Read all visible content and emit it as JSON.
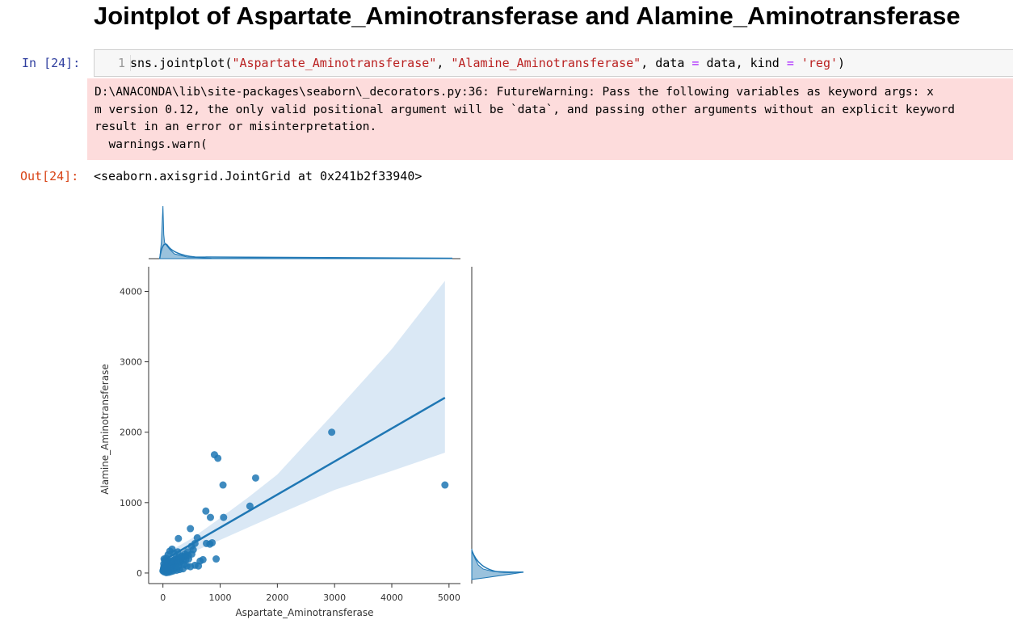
{
  "title": "Jointplot of Aspartate_Aminotransferase and Alamine_Aminotransferase",
  "input_cell": {
    "prompt": "In [24]:",
    "line_number": "1",
    "code_tokens": [
      {
        "text": "sns.jointplot(",
        "kind": "plain"
      },
      {
        "text": "\"Aspartate_Aminotransferase\"",
        "kind": "string"
      },
      {
        "text": ", ",
        "kind": "plain"
      },
      {
        "text": "\"Alamine_Aminotransferase\"",
        "kind": "string"
      },
      {
        "text": ", data ",
        "kind": "plain"
      },
      {
        "text": "=",
        "kind": "operator"
      },
      {
        "text": " data, kind ",
        "kind": "plain"
      },
      {
        "text": "=",
        "kind": "operator"
      },
      {
        "text": " ",
        "kind": "plain"
      },
      {
        "text": "'reg'",
        "kind": "string"
      },
      {
        "text": ")",
        "kind": "plain"
      }
    ]
  },
  "stderr": {
    "lines": [
      "D:\\ANACONDA\\lib\\site-packages\\seaborn\\_decorators.py:36: FutureWarning: Pass the following variables as keyword args: x",
      "m version 0.12, the only valid positional argument will be `data`, and passing other arguments without an explicit keyword",
      "result in an error or misinterpretation.",
      "  warnings.warn("
    ]
  },
  "output_cell": {
    "prompt": "Out[24]:",
    "text": "<seaborn.axisgrid.JointGrid at 0x241b2f33940>"
  },
  "colors": {
    "point": "#1f77b4",
    "ci_band": "#c6dbef",
    "error_bg": "#fddcdc",
    "in_prompt": "#303f9f",
    "out_prompt": "#d84315"
  },
  "chart_data": {
    "type": "scatter",
    "xlabel": "Aspartate_Aminotransferase",
    "ylabel": "Alamine_Aminotransferase",
    "xlim": [
      -250,
      5200
    ],
    "ylim": [
      -150,
      4350
    ],
    "xticks": [
      0,
      1000,
      2000,
      3000,
      4000,
      5000
    ],
    "yticks": [
      0,
      1000,
      2000,
      3000,
      4000
    ],
    "regression": {
      "x": [
        10,
        4929
      ],
      "y": [
        180,
        2490
      ]
    },
    "ci_band": {
      "x": [
        10,
        500,
        1000,
        1500,
        2000,
        3000,
        4000,
        4929
      ],
      "upper": [
        260,
        490,
        780,
        1080,
        1400,
        2280,
        3180,
        4150
      ],
      "lower": [
        110,
        290,
        470,
        650,
        830,
        1180,
        1450,
        1710
      ]
    },
    "points": [
      [
        1620,
        1350
      ],
      [
        2950,
        2000
      ],
      [
        4929,
        1250
      ],
      [
        900,
        1680
      ],
      [
        960,
        1630
      ],
      [
        1050,
        1250
      ],
      [
        1520,
        950
      ],
      [
        750,
        880
      ],
      [
        830,
        790
      ],
      [
        1060,
        790
      ],
      [
        480,
        630
      ],
      [
        270,
        490
      ],
      [
        600,
        500
      ],
      [
        860,
        430
      ],
      [
        820,
        410
      ],
      [
        760,
        420
      ],
      [
        930,
        200
      ],
      [
        560,
        420
      ],
      [
        500,
        380
      ],
      [
        530,
        330
      ],
      [
        430,
        300
      ],
      [
        380,
        270
      ],
      [
        330,
        240
      ],
      [
        280,
        220
      ],
      [
        240,
        200
      ],
      [
        210,
        190
      ],
      [
        180,
        180
      ],
      [
        150,
        170
      ],
      [
        120,
        160
      ],
      [
        100,
        150
      ],
      [
        80,
        140
      ],
      [
        60,
        120
      ],
      [
        40,
        110
      ],
      [
        30,
        100
      ],
      [
        20,
        90
      ],
      [
        15,
        80
      ],
      [
        10,
        60
      ],
      [
        5,
        40
      ],
      [
        0,
        30
      ],
      [
        50,
        50
      ],
      [
        70,
        40
      ],
      [
        90,
        60
      ],
      [
        110,
        80
      ],
      [
        130,
        70
      ],
      [
        160,
        90
      ],
      [
        190,
        110
      ],
      [
        220,
        130
      ],
      [
        250,
        140
      ],
      [
        300,
        160
      ],
      [
        350,
        180
      ],
      [
        400,
        190
      ],
      [
        450,
        200
      ],
      [
        120,
        310
      ],
      [
        160,
        340
      ],
      [
        90,
        260
      ],
      [
        60,
        210
      ],
      [
        30,
        180
      ],
      [
        200,
        280
      ],
      [
        260,
        300
      ],
      [
        310,
        150
      ],
      [
        370,
        120
      ],
      [
        420,
        100
      ],
      [
        480,
        90
      ],
      [
        560,
        110
      ],
      [
        620,
        100
      ],
      [
        650,
        170
      ],
      [
        700,
        190
      ],
      [
        350,
        60
      ],
      [
        290,
        50
      ],
      [
        240,
        40
      ],
      [
        180,
        30
      ],
      [
        140,
        20
      ],
      [
        100,
        10
      ],
      [
        60,
        5
      ],
      [
        25,
        15
      ],
      [
        45,
        70
      ],
      [
        75,
        95
      ],
      [
        105,
        125
      ],
      [
        135,
        105
      ],
      [
        165,
        135
      ],
      [
        195,
        155
      ],
      [
        225,
        175
      ],
      [
        255,
        185
      ],
      [
        285,
        205
      ],
      [
        315,
        215
      ],
      [
        345,
        225
      ],
      [
        395,
        240
      ],
      [
        445,
        250
      ],
      [
        505,
        270
      ],
      [
        20,
        200
      ],
      [
        40,
        160
      ],
      [
        15,
        130
      ],
      [
        55,
        90
      ],
      [
        85,
        30
      ],
      [
        115,
        45
      ],
      [
        145,
        55
      ],
      [
        175,
        65
      ],
      [
        205,
        75
      ],
      [
        235,
        85
      ],
      [
        265,
        95
      ]
    ]
  }
}
